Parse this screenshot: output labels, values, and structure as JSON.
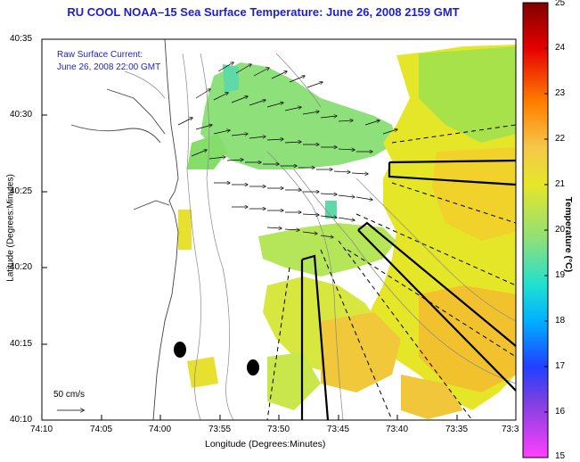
{
  "title": "RU COOL   NOAA–15   Sea Surface Temperature:   June 26, 2008 2159 GMT",
  "legend": {
    "line1": "Raw Surface Current:",
    "line2": "June 26, 2008 22:00 GMT"
  },
  "axes": {
    "xlabel": "Longitude (Degrees:Minutes)",
    "ylabel": "Latitude (Degrees:Minutes)",
    "x_ticks": [
      "74:10",
      "74:05",
      "74:00",
      "73:55",
      "73:50",
      "73:45",
      "73:40",
      "73:35",
      "73:3"
    ],
    "y_ticks": [
      "40:35",
      "40:30",
      "40:25",
      "40:20",
      "40:15",
      "40:10"
    ]
  },
  "colorbar": {
    "label": "Temperature (°C)",
    "ticks": [
      "25",
      "24",
      "23",
      "22",
      "21",
      "20",
      "19",
      "18",
      "17",
      "16",
      "15"
    ],
    "min": 15,
    "max": 25
  },
  "scale": {
    "label": "50 cm/s"
  }
}
